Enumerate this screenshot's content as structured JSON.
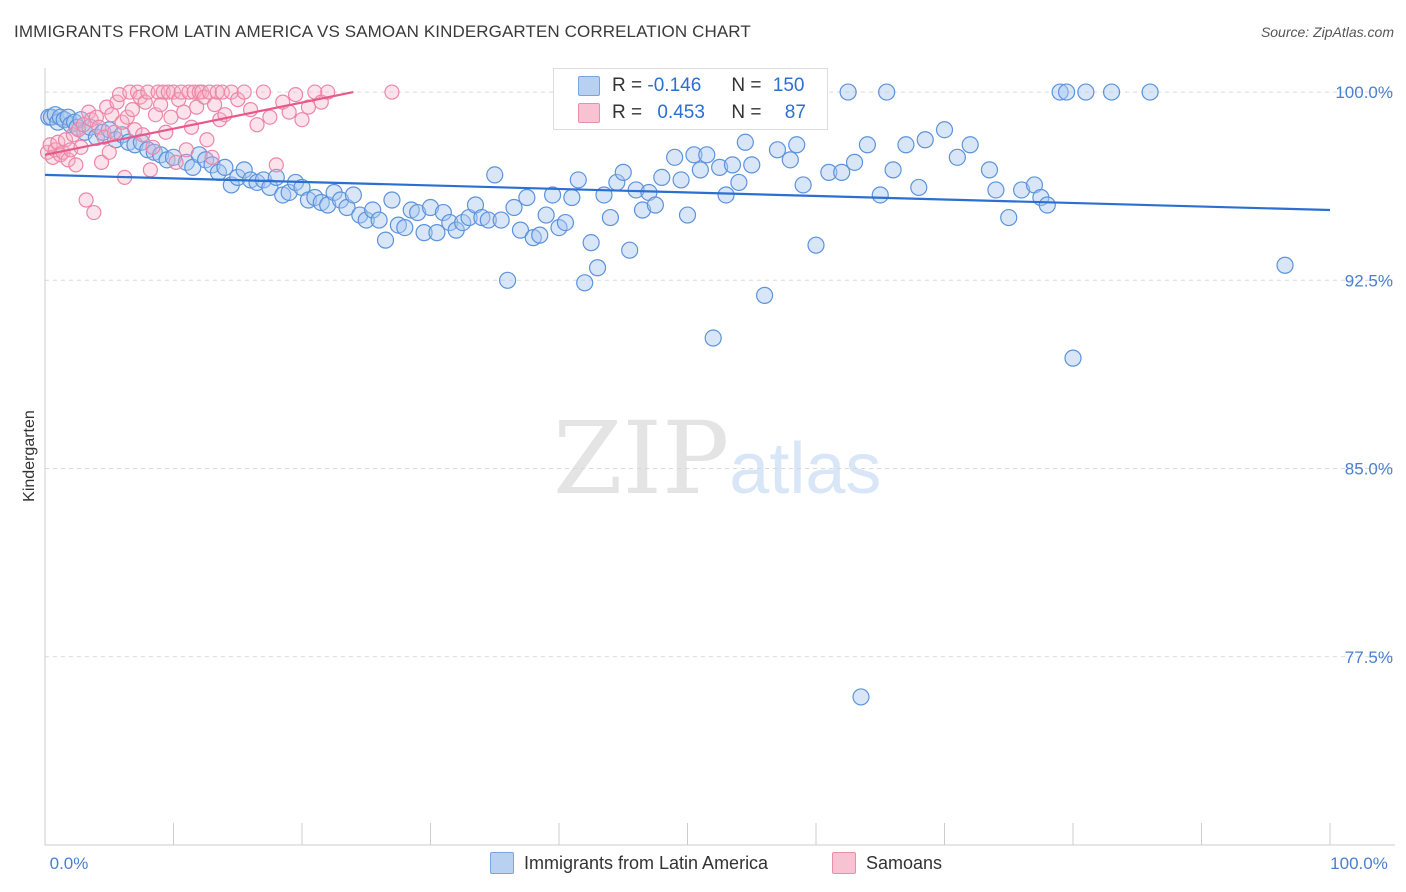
{
  "header": {
    "title": "IMMIGRANTS FROM LATIN AMERICA VS SAMOAN KINDERGARTEN CORRELATION CHART",
    "source": "Source: ZipAtlas.com"
  },
  "stats": {
    "blue": {
      "r_label": "R =",
      "r_value": "-0.146",
      "n_label": "N =",
      "n_value": "150"
    },
    "pink": {
      "r_label": "R =",
      "r_value": "0.453",
      "n_label": "N =",
      "n_value": "87"
    }
  },
  "legend": {
    "blue_label": "Immigrants from Latin America",
    "pink_label": "Samoans"
  },
  "watermark": {
    "zip": "ZIP",
    "atlas": "atlas"
  },
  "colors": {
    "blue": "#4a86d4",
    "pink": "#e86b93",
    "blue_line": "#2b6fd1",
    "pink_line": "#e8588a",
    "grid": "#d9d9d9"
  },
  "chart_data": {
    "type": "scatter",
    "title": "IMMIGRANTS FROM LATIN AMERICA VS SAMOAN KINDERGARTEN CORRELATION CHART",
    "xlabel": "",
    "ylabel": "Kindergarten",
    "xlim": [
      0,
      100
    ],
    "ylim": [
      70,
      100.8
    ],
    "x_tick_labels": [
      "0.0%",
      "100.0%"
    ],
    "y_ticks": [
      100.0,
      92.5,
      85.0,
      77.5
    ],
    "y_tick_labels": [
      "100.0%",
      "92.5%",
      "85.0%",
      "77.5%"
    ],
    "grid": true,
    "legend_position": "bottom",
    "series": [
      {
        "name": "Immigrants from Latin America",
        "color": "#4a86d4",
        "trend": {
          "x": [
            0,
            100
          ],
          "y": [
            96.7,
            95.3
          ]
        },
        "points": [
          [
            0.3,
            99.0
          ],
          [
            0.5,
            99.0
          ],
          [
            0.8,
            99.1
          ],
          [
            1.0,
            98.8
          ],
          [
            1.2,
            99.0
          ],
          [
            1.5,
            98.9
          ],
          [
            1.8,
            99.0
          ],
          [
            2.0,
            98.7
          ],
          [
            2.3,
            98.8
          ],
          [
            2.5,
            98.6
          ],
          [
            2.8,
            98.9
          ],
          [
            3.1,
            98.4
          ],
          [
            3.5,
            98.6
          ],
          [
            4.0,
            98.2
          ],
          [
            4.5,
            98.4
          ],
          [
            5.0,
            98.5
          ],
          [
            5.5,
            98.1
          ],
          [
            6.0,
            98.3
          ],
          [
            6.5,
            98.0
          ],
          [
            7.0,
            97.9
          ],
          [
            7.5,
            98.0
          ],
          [
            8.0,
            97.7
          ],
          [
            8.5,
            97.6
          ],
          [
            9.0,
            97.5
          ],
          [
            9.5,
            97.3
          ],
          [
            10.0,
            97.4
          ],
          [
            11.0,
            97.2
          ],
          [
            11.5,
            97.0
          ],
          [
            12.0,
            97.5
          ],
          [
            12.5,
            97.3
          ],
          [
            13.0,
            97.1
          ],
          [
            13.5,
            96.8
          ],
          [
            14.0,
            97.0
          ],
          [
            14.5,
            96.3
          ],
          [
            15.0,
            96.6
          ],
          [
            15.5,
            96.9
          ],
          [
            16.0,
            96.5
          ],
          [
            16.5,
            96.4
          ],
          [
            17.0,
            96.5
          ],
          [
            17.5,
            96.2
          ],
          [
            18.0,
            96.6
          ],
          [
            18.5,
            95.9
          ],
          [
            19.0,
            96.0
          ],
          [
            19.5,
            96.4
          ],
          [
            20.0,
            96.2
          ],
          [
            20.5,
            95.7
          ],
          [
            21.0,
            95.8
          ],
          [
            21.5,
            95.6
          ],
          [
            22.0,
            95.5
          ],
          [
            22.5,
            96.0
          ],
          [
            23.0,
            95.7
          ],
          [
            23.5,
            95.4
          ],
          [
            24.0,
            95.9
          ],
          [
            24.5,
            95.1
          ],
          [
            25.0,
            94.9
          ],
          [
            25.5,
            95.3
          ],
          [
            26.0,
            94.9
          ],
          [
            26.5,
            94.1
          ],
          [
            27.0,
            95.7
          ],
          [
            27.5,
            94.7
          ],
          [
            28.0,
            94.6
          ],
          [
            28.5,
            95.3
          ],
          [
            29.0,
            95.2
          ],
          [
            29.5,
            94.4
          ],
          [
            30.0,
            95.4
          ],
          [
            30.5,
            94.4
          ],
          [
            31.0,
            95.2
          ],
          [
            31.5,
            94.8
          ],
          [
            32.0,
            94.5
          ],
          [
            32.5,
            94.8
          ],
          [
            33.0,
            95.0
          ],
          [
            33.5,
            95.5
          ],
          [
            34.0,
            95.0
          ],
          [
            34.5,
            94.9
          ],
          [
            35.0,
            96.7
          ],
          [
            35.5,
            94.9
          ],
          [
            36.0,
            92.5
          ],
          [
            36.5,
            95.4
          ],
          [
            37.0,
            94.5
          ],
          [
            37.5,
            95.8
          ],
          [
            38.0,
            94.2
          ],
          [
            38.5,
            94.3
          ],
          [
            39.0,
            95.1
          ],
          [
            39.5,
            95.9
          ],
          [
            40.0,
            94.6
          ],
          [
            40.5,
            94.8
          ],
          [
            41.0,
            95.8
          ],
          [
            41.5,
            96.5
          ],
          [
            42.0,
            92.4
          ],
          [
            42.5,
            94.0
          ],
          [
            43.0,
            93.0
          ],
          [
            43.5,
            95.9
          ],
          [
            44.0,
            95.0
          ],
          [
            44.5,
            96.4
          ],
          [
            45.0,
            96.8
          ],
          [
            45.5,
            93.7
          ],
          [
            46.0,
            96.1
          ],
          [
            46.5,
            95.3
          ],
          [
            47.0,
            96.0
          ],
          [
            47.5,
            95.5
          ],
          [
            48.0,
            96.6
          ],
          [
            48.5,
            98.9
          ],
          [
            49.0,
            97.4
          ],
          [
            49.5,
            96.5
          ],
          [
            50.0,
            95.1
          ],
          [
            50.5,
            97.5
          ],
          [
            51.0,
            96.9
          ],
          [
            51.5,
            97.5
          ],
          [
            52.0,
            90.2
          ],
          [
            52.5,
            97.0
          ],
          [
            53.0,
            95.9
          ],
          [
            53.5,
            97.1
          ],
          [
            54.0,
            96.4
          ],
          [
            54.5,
            98.0
          ],
          [
            55.0,
            97.1
          ],
          [
            56.0,
            91.9
          ],
          [
            57.0,
            97.7
          ],
          [
            58.0,
            97.3
          ],
          [
            58.5,
            97.9
          ],
          [
            59.0,
            96.3
          ],
          [
            60.0,
            93.9
          ],
          [
            61.0,
            96.8
          ],
          [
            62.0,
            96.8
          ],
          [
            62.5,
            100.0
          ],
          [
            63.0,
            97.2
          ],
          [
            63.5,
            75.9
          ],
          [
            64.0,
            97.9
          ],
          [
            65.0,
            95.9
          ],
          [
            65.5,
            100.0
          ],
          [
            66.0,
            96.9
          ],
          [
            67.0,
            97.9
          ],
          [
            68.0,
            96.2
          ],
          [
            68.5,
            98.1
          ],
          [
            70.0,
            98.5
          ],
          [
            71.0,
            97.4
          ],
          [
            72.0,
            97.9
          ],
          [
            73.5,
            96.9
          ],
          [
            74.0,
            96.1
          ],
          [
            75.0,
            95.0
          ],
          [
            76.0,
            96.1
          ],
          [
            77.0,
            96.3
          ],
          [
            77.5,
            95.8
          ],
          [
            78.0,
            95.5
          ],
          [
            79.0,
            100.0
          ],
          [
            79.5,
            100.0
          ],
          [
            80.0,
            89.4
          ],
          [
            81.0,
            100.0
          ],
          [
            83.0,
            100.0
          ],
          [
            86.0,
            100.0
          ],
          [
            96.5,
            93.1
          ]
        ]
      },
      {
        "name": "Samoans",
        "color": "#e86b93",
        "trend": {
          "x": [
            0,
            24
          ],
          "y": [
            97.5,
            100.0
          ]
        },
        "points": [
          [
            0.2,
            97.6
          ],
          [
            0.4,
            97.9
          ],
          [
            0.6,
            97.4
          ],
          [
            0.8,
            97.7
          ],
          [
            1.0,
            98.0
          ],
          [
            1.2,
            97.5
          ],
          [
            1.4,
            97.6
          ],
          [
            1.6,
            98.1
          ],
          [
            1.8,
            97.3
          ],
          [
            2.0,
            97.7
          ],
          [
            2.2,
            98.3
          ],
          [
            2.4,
            97.1
          ],
          [
            2.6,
            98.5
          ],
          [
            2.8,
            97.8
          ],
          [
            3.0,
            98.7
          ],
          [
            3.2,
            95.7
          ],
          [
            3.4,
            99.2
          ],
          [
            3.6,
            98.9
          ],
          [
            3.8,
            95.2
          ],
          [
            4.0,
            99.0
          ],
          [
            4.2,
            98.6
          ],
          [
            4.4,
            97.2
          ],
          [
            4.6,
            98.2
          ],
          [
            4.8,
            99.4
          ],
          [
            5.0,
            97.6
          ],
          [
            5.2,
            99.1
          ],
          [
            5.4,
            98.4
          ],
          [
            5.6,
            99.6
          ],
          [
            5.8,
            99.9
          ],
          [
            6.0,
            98.8
          ],
          [
            6.2,
            96.6
          ],
          [
            6.4,
            99.0
          ],
          [
            6.6,
            100.0
          ],
          [
            6.8,
            99.3
          ],
          [
            7.0,
            98.5
          ],
          [
            7.2,
            100.0
          ],
          [
            7.4,
            99.8
          ],
          [
            7.6,
            98.3
          ],
          [
            7.8,
            99.6
          ],
          [
            8.0,
            100.0
          ],
          [
            8.2,
            96.9
          ],
          [
            8.4,
            97.8
          ],
          [
            8.6,
            99.1
          ],
          [
            8.8,
            100.0
          ],
          [
            9.0,
            99.5
          ],
          [
            9.2,
            100.0
          ],
          [
            9.4,
            98.4
          ],
          [
            9.6,
            100.0
          ],
          [
            9.8,
            99.0
          ],
          [
            10.0,
            100.0
          ],
          [
            10.2,
            97.2
          ],
          [
            10.4,
            99.7
          ],
          [
            10.6,
            100.0
          ],
          [
            10.8,
            99.2
          ],
          [
            11.0,
            97.7
          ],
          [
            11.2,
            100.0
          ],
          [
            11.4,
            98.6
          ],
          [
            11.6,
            100.0
          ],
          [
            11.8,
            99.4
          ],
          [
            12.0,
            100.0
          ],
          [
            12.2,
            100.0
          ],
          [
            12.4,
            99.8
          ],
          [
            12.6,
            98.1
          ],
          [
            12.8,
            100.0
          ],
          [
            13.0,
            97.4
          ],
          [
            13.2,
            99.5
          ],
          [
            13.4,
            100.0
          ],
          [
            13.6,
            98.9
          ],
          [
            13.8,
            100.0
          ],
          [
            14.0,
            99.1
          ],
          [
            14.5,
            100.0
          ],
          [
            15.0,
            99.7
          ],
          [
            15.5,
            100.0
          ],
          [
            16.0,
            99.3
          ],
          [
            16.5,
            98.7
          ],
          [
            17.0,
            100.0
          ],
          [
            17.5,
            99.0
          ],
          [
            18.0,
            97.1
          ],
          [
            18.5,
            99.6
          ],
          [
            19.0,
            99.2
          ],
          [
            19.5,
            99.9
          ],
          [
            20.0,
            98.9
          ],
          [
            20.5,
            99.4
          ],
          [
            21.0,
            100.0
          ],
          [
            21.5,
            99.6
          ],
          [
            22.0,
            100.0
          ],
          [
            27.0,
            100.0
          ]
        ]
      }
    ]
  }
}
